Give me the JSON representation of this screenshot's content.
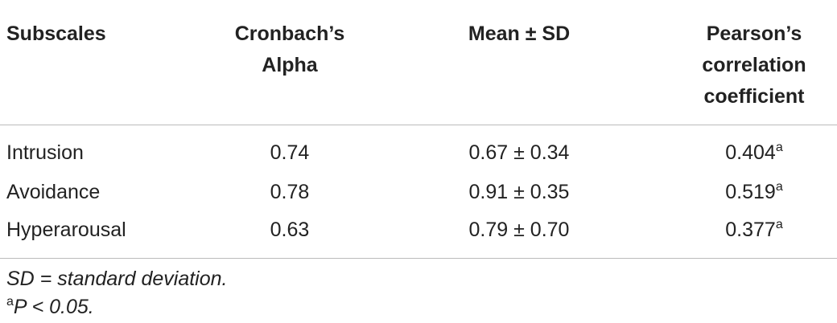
{
  "table": {
    "header": [
      [
        "Subscales"
      ],
      [
        "Cronbach’s",
        "Alpha"
      ],
      [
        "Mean ± SD"
      ],
      [
        "Pearson’s",
        "correlation",
        "coefficient"
      ]
    ],
    "rows": [
      [
        "Intrusion",
        "0.74",
        "0.67 ± 0.34",
        {
          "text": "0.404",
          "sup": "a"
        }
      ],
      [
        "Avoidance",
        "0.78",
        "0.91 ± 0.35",
        {
          "text": "0.519",
          "sup": "a"
        }
      ],
      [
        "Hyperarousal",
        "0.63",
        "0.79 ± 0.70",
        {
          "text": "0.377",
          "sup": "a"
        }
      ]
    ]
  },
  "footnotes": [
    {
      "text": "SD = standard deviation."
    },
    {
      "sup": "a",
      "text": "P < 0.05."
    }
  ]
}
